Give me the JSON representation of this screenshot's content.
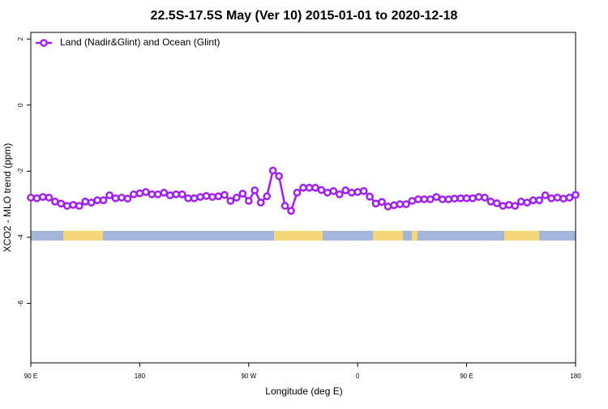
{
  "chart_data": {
    "type": "line",
    "title": "22.5S-17.5S May (Ver 10)   2015-01-01 to 2020-12-18",
    "x_label": "Longitude (deg E)",
    "y_label": "XCO2 - MLO trend (ppm)",
    "x": [
      90,
      95,
      100,
      105,
      110,
      115,
      120,
      125,
      130,
      135,
      140,
      145,
      150,
      155,
      160,
      165,
      170,
      175,
      180,
      185,
      190,
      195,
      200,
      205,
      210,
      215,
      220,
      225,
      230,
      235,
      240,
      245,
      250,
      255,
      260,
      265,
      270,
      275,
      280,
      285,
      290,
      295,
      300,
      305,
      310,
      315,
      320,
      325,
      330,
      335,
      340,
      345,
      350,
      355,
      360,
      365,
      370,
      375,
      380,
      385,
      390,
      395,
      400,
      405,
      410,
      415,
      420,
      425,
      430,
      435,
      440,
      445,
      450,
      455,
      460,
      465,
      470,
      475,
      480,
      485,
      490,
      495,
      500,
      505,
      510,
      515,
      520,
      525,
      530,
      535,
      540
    ],
    "series": [
      {
        "name": "Land (Nadir&Glint) and Ocean (Glint)",
        "color": "#a020f0",
        "values": [
          -2.8,
          -2.82,
          -2.78,
          -2.8,
          -2.92,
          -2.98,
          -3.05,
          -3.02,
          -3.05,
          -2.92,
          -2.95,
          -2.88,
          -2.88,
          -2.73,
          -2.82,
          -2.8,
          -2.83,
          -2.7,
          -2.67,
          -2.63,
          -2.7,
          -2.7,
          -2.65,
          -2.73,
          -2.7,
          -2.7,
          -2.82,
          -2.82,
          -2.78,
          -2.75,
          -2.78,
          -2.76,
          -2.72,
          -2.9,
          -2.8,
          -2.68,
          -2.9,
          -2.58,
          -2.95,
          -2.76,
          -1.98,
          -2.15,
          -3.05,
          -3.2,
          -2.65,
          -2.5,
          -2.5,
          -2.5,
          -2.57,
          -2.65,
          -2.6,
          -2.7,
          -2.58,
          -2.65,
          -2.63,
          -2.6,
          -2.77,
          -2.98,
          -2.93,
          -3.07,
          -3.03,
          -3.0,
          -3.0,
          -2.9,
          -2.85,
          -2.85,
          -2.85,
          -2.78,
          -2.85,
          -2.85,
          -2.83,
          -2.82,
          -2.82,
          -2.82,
          -2.78,
          -2.8,
          -2.92,
          -2.97,
          -3.05,
          -3.02,
          -3.05,
          -2.92,
          -2.95,
          -2.88,
          -2.88,
          -2.73,
          -2.82,
          -2.8,
          -2.83,
          -2.8,
          -2.72
        ]
      }
    ],
    "xlim": [
      90,
      540
    ],
    "xticks": [
      {
        "value": 90,
        "label": "90 E"
      },
      180,
      {
        "value": 270,
        "label": "90 W"
      },
      {
        "value": 360,
        "label": "0"
      },
      {
        "value": 450,
        "label": "90 E"
      },
      180
    ],
    "xtick_positions": [
      90,
      180,
      270,
      360,
      450,
      540
    ],
    "ylim": [
      -7.8,
      2.2
    ],
    "yticks": [
      2,
      0,
      -2,
      -4,
      -6
    ],
    "legend": "top-left"
  }
}
